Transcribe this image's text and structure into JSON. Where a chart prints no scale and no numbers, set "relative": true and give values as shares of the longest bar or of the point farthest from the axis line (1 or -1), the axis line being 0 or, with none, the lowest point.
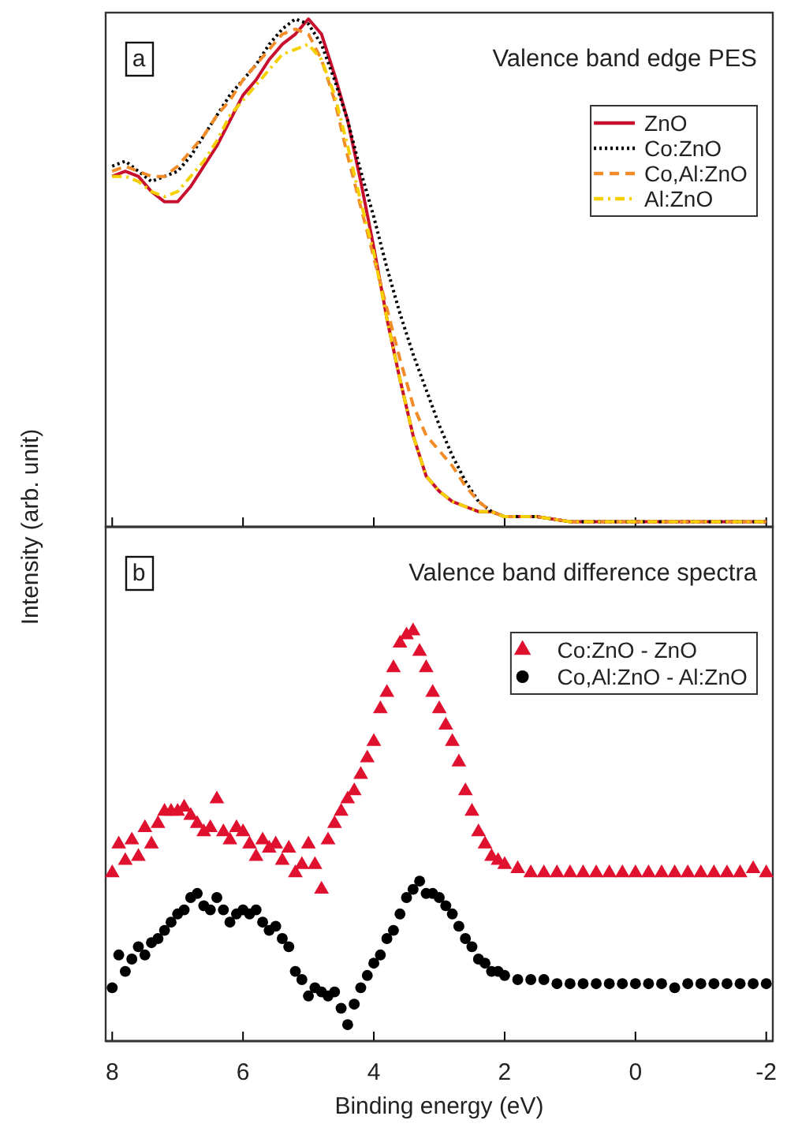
{
  "chart_data": [
    {
      "type": "line",
      "title": "Valence band edge PES",
      "ylabel": "Intensity (arb. unit)",
      "annotations": [
        "a"
      ],
      "relative": true,
      "xlim": [
        8.1,
        -2.1
      ],
      "xticks": [
        8,
        6,
        4,
        2,
        0,
        -2
      ],
      "tick_labels": false,
      "legend": "top right",
      "x": [
        8.0,
        7.8,
        7.6,
        7.4,
        7.2,
        7.0,
        6.8,
        6.6,
        6.4,
        6.2,
        6.0,
        5.8,
        5.6,
        5.4,
        5.2,
        5.0,
        4.8,
        4.6,
        4.4,
        4.2,
        4.0,
        3.8,
        3.6,
        3.4,
        3.2,
        3.0,
        2.8,
        2.6,
        2.4,
        2.2,
        2.0,
        1.8,
        1.5,
        1.0,
        0,
        -1,
        -2
      ],
      "series": [
        {
          "name": "ZnO",
          "color": "#c8102e",
          "line_style": "solid",
          "values": [
            0.69,
            0.7,
            0.69,
            0.66,
            0.64,
            0.64,
            0.67,
            0.71,
            0.75,
            0.8,
            0.85,
            0.88,
            0.92,
            0.95,
            0.97,
            1.0,
            0.97,
            0.89,
            0.8,
            0.68,
            0.55,
            0.41,
            0.29,
            0.18,
            0.1,
            0.07,
            0.05,
            0.04,
            0.03,
            0.03,
            0.02,
            0.02,
            0.02,
            0.01,
            0.01,
            0.01,
            0.01
          ]
        },
        {
          "name": "Co:ZnO",
          "color": "#000000",
          "line_style": "dotted",
          "values": [
            0.71,
            0.72,
            0.7,
            0.68,
            0.69,
            0.7,
            0.73,
            0.77,
            0.81,
            0.85,
            0.88,
            0.91,
            0.95,
            0.98,
            1.0,
            0.99,
            0.95,
            0.88,
            0.8,
            0.7,
            0.61,
            0.51,
            0.42,
            0.34,
            0.27,
            0.2,
            0.14,
            0.09,
            0.05,
            0.03,
            0.02,
            0.02,
            0.02,
            0.01,
            0.01,
            0.01,
            0.01
          ]
        },
        {
          "name": "Co,Al:ZnO",
          "color": "#f28c28",
          "line_style": "dashed",
          "values": [
            0.7,
            0.71,
            0.7,
            0.69,
            0.69,
            0.71,
            0.74,
            0.77,
            0.81,
            0.84,
            0.88,
            0.91,
            0.94,
            0.97,
            0.98,
            0.97,
            0.92,
            0.84,
            0.73,
            0.63,
            0.53,
            0.43,
            0.33,
            0.24,
            0.18,
            0.15,
            0.12,
            0.08,
            0.05,
            0.03,
            0.02,
            0.02,
            0.02,
            0.01,
            0.01,
            0.01,
            0.01
          ]
        },
        {
          "name": "Al:ZnO",
          "color": "#f5d000",
          "line_style": "dashdot",
          "values": [
            0.69,
            0.69,
            0.68,
            0.66,
            0.65,
            0.66,
            0.69,
            0.72,
            0.76,
            0.81,
            0.84,
            0.87,
            0.9,
            0.93,
            0.94,
            0.95,
            0.92,
            0.85,
            0.75,
            0.64,
            0.54,
            0.41,
            0.29,
            0.18,
            0.1,
            0.07,
            0.05,
            0.04,
            0.03,
            0.03,
            0.02,
            0.02,
            0.02,
            0.01,
            0.01,
            0.01,
            0.01
          ]
        }
      ]
    },
    {
      "type": "scatter",
      "title": "Valence band difference spectra",
      "xlabel": "Binding energy (eV)",
      "annotations": [
        "b"
      ],
      "relative": true,
      "xlim": [
        8.1,
        -2.1
      ],
      "xticks": [
        8,
        6,
        4,
        2,
        0,
        -2
      ],
      "tick_labels": "x",
      "legend": "top right",
      "x": [
        8.0,
        7.9,
        7.8,
        7.7,
        7.6,
        7.5,
        7.4,
        7.3,
        7.2,
        7.1,
        7.0,
        6.9,
        6.8,
        6.7,
        6.6,
        6.5,
        6.4,
        6.3,
        6.2,
        6.1,
        6.0,
        5.9,
        5.8,
        5.7,
        5.6,
        5.5,
        5.4,
        5.3,
        5.2,
        5.1,
        5.0,
        4.9,
        4.8,
        4.7,
        4.6,
        4.5,
        4.4,
        4.3,
        4.2,
        4.1,
        4.0,
        3.9,
        3.8,
        3.7,
        3.6,
        3.5,
        3.4,
        3.3,
        3.2,
        3.1,
        3.0,
        2.9,
        2.8,
        2.7,
        2.6,
        2.5,
        2.4,
        2.3,
        2.2,
        2.1,
        2.0,
        1.8,
        1.6,
        1.4,
        1.2,
        1.0,
        0.8,
        0.6,
        0.4,
        0.2,
        0,
        -0.2,
        -0.4,
        -0.6,
        -0.8,
        -1.0,
        -1.2,
        -1.4,
        -1.6,
        -1.8,
        -2.0
      ],
      "series": [
        {
          "name": "Co:ZnO - ZnO",
          "color": "#e0102f",
          "marker": "triangle",
          "values": [
            0.41,
            0.48,
            0.44,
            0.49,
            0.45,
            0.52,
            0.48,
            0.53,
            0.56,
            0.56,
            0.56,
            0.57,
            0.55,
            0.53,
            0.51,
            0.52,
            0.59,
            0.51,
            0.49,
            0.52,
            0.51,
            0.48,
            0.45,
            0.49,
            0.47,
            0.48,
            0.44,
            0.47,
            0.41,
            0.43,
            0.48,
            0.43,
            0.37,
            0.49,
            0.53,
            0.56,
            0.59,
            0.61,
            0.65,
            0.69,
            0.73,
            0.81,
            0.85,
            0.91,
            0.97,
            0.99,
            1.0,
            0.95,
            0.91,
            0.85,
            0.81,
            0.77,
            0.73,
            0.68,
            0.61,
            0.56,
            0.51,
            0.48,
            0.45,
            0.44,
            0.43,
            0.42,
            0.41,
            0.41,
            0.41,
            0.41,
            0.41,
            0.41,
            0.41,
            0.41,
            0.41,
            0.41,
            0.41,
            0.41,
            0.41,
            0.41,
            0.41,
            0.41,
            0.41,
            0.42,
            0.41
          ]
        },
        {
          "name": "Co,Al:ZnO - Al:ZnO",
          "color": "#000000",
          "marker": "circle",
          "values": [
            0.13,
            0.21,
            0.17,
            0.2,
            0.23,
            0.21,
            0.24,
            0.25,
            0.27,
            0.29,
            0.31,
            0.32,
            0.35,
            0.36,
            0.33,
            0.32,
            0.35,
            0.32,
            0.29,
            0.31,
            0.32,
            0.31,
            0.32,
            0.29,
            0.27,
            0.28,
            0.25,
            0.23,
            0.17,
            0.15,
            0.11,
            0.13,
            0.12,
            0.11,
            0.12,
            0.08,
            0.04,
            0.09,
            0.13,
            0.16,
            0.19,
            0.21,
            0.25,
            0.27,
            0.31,
            0.35,
            0.37,
            0.39,
            0.36,
            0.36,
            0.35,
            0.33,
            0.31,
            0.28,
            0.25,
            0.23,
            0.2,
            0.19,
            0.17,
            0.17,
            0.16,
            0.15,
            0.15,
            0.15,
            0.14,
            0.14,
            0.14,
            0.14,
            0.14,
            0.14,
            0.14,
            0.14,
            0.14,
            0.13,
            0.14,
            0.14,
            0.14,
            0.14,
            0.14,
            0.14,
            0.14
          ]
        }
      ]
    }
  ]
}
